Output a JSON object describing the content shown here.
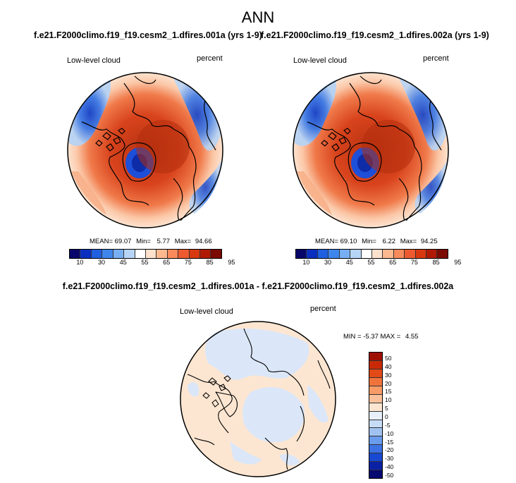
{
  "figure": {
    "title": "ANN",
    "case1_title": "f.e21.F2000climo.f19_f19.cesm2_1.dfires.001a (yrs 1-9)",
    "case2_title": "f.e21.F2000climo.f19_f19.cesm2_1.dfires.002a (yrs 1-9)",
    "diff_title": "f.e21.F2000climo.f19_f19.cesm2_1.dfires.001a - f.e21.F2000climo.f19_f19.cesm2_1.dfires.002a"
  },
  "panel1": {
    "variable": "Low-level cloud",
    "units": "percent",
    "mean_label": "MEAN=",
    "mean": "69.07",
    "min_label": "Min=",
    "min": "5.77",
    "max_label": "Max=",
    "max": "94.66"
  },
  "panel2": {
    "variable": "Low-level cloud",
    "units": "percent",
    "mean_label": "MEAN=",
    "mean": "69.10",
    "min_label": "Min=",
    "min": "6.22",
    "max_label": "Max=",
    "max": "94.25"
  },
  "panel3": {
    "variable": "Low-level cloud",
    "units": "percent",
    "min_label": "MIN =",
    "min": "-5.37",
    "max_label": "MAX =",
    "max": "4.55"
  },
  "colorbar_abs": {
    "colors": [
      "#08066a",
      "#0a2fc0",
      "#1f5fe0",
      "#3f86ec",
      "#78aff2",
      "#b6d4f5",
      "#ffffff",
      "#fde1cc",
      "#fcb990",
      "#f98a5c",
      "#ee5a2f",
      "#d8380f",
      "#b01a05",
      "#7a0a02"
    ],
    "tick_labels": [
      "10",
      "30",
      "45",
      "55",
      "65",
      "75",
      "85",
      "95"
    ]
  },
  "colorbar_diff": {
    "colors": [
      "#9e0f00",
      "#c92a05",
      "#e24a17",
      "#f0733c",
      "#f89b66",
      "#fcc19a",
      "#fde6d1",
      "#e7f0fb",
      "#c7dcf6",
      "#a0c2f1",
      "#6a9ced",
      "#3c72e3",
      "#1849d3",
      "#0a21a6",
      "#060a70"
    ],
    "tick_labels": [
      "50",
      "40",
      "30",
      "20",
      "15",
      "10",
      "5",
      "0",
      "-5",
      "-10",
      "-15",
      "-20",
      "-30",
      "-40",
      "-50"
    ]
  }
}
